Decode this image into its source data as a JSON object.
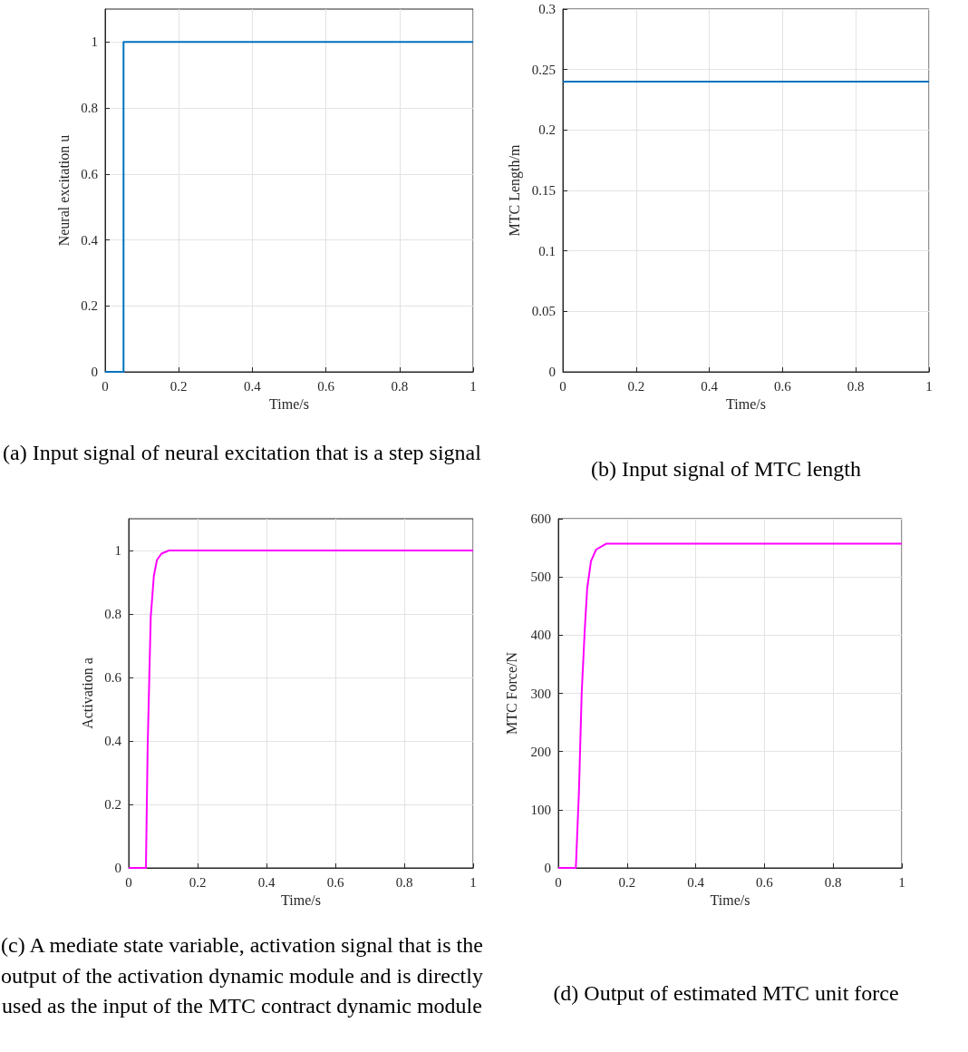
{
  "chart_data": [
    {
      "type": "step",
      "title": "(a) Input signal of neural excitation that is a step signal",
      "xlabel": "Time/s",
      "ylabel": "Neural excitation u",
      "x": [
        0,
        0.05,
        1
      ],
      "series": [
        {
          "color": "#0072bd",
          "values": [
            0,
            1,
            1
          ]
        }
      ],
      "xlim": [
        0,
        1
      ],
      "ylim": [
        0,
        1.1
      ],
      "xticks": [
        0,
        0.2,
        0.4,
        0.6,
        0.8,
        1
      ],
      "yticks": [
        0,
        0.2,
        0.4,
        0.6,
        0.8,
        1
      ],
      "grid": true
    },
    {
      "type": "line",
      "title": "(b) Input signal of MTC length",
      "xlabel": "Time/s",
      "ylabel": "MTC Length/m",
      "x": [
        0,
        1
      ],
      "series": [
        {
          "color": "#0072bd",
          "values": [
            0.24,
            0.24
          ]
        }
      ],
      "xlim": [
        0,
        1
      ],
      "ylim": [
        0,
        0.3
      ],
      "xticks": [
        0,
        0.2,
        0.4,
        0.6,
        0.8,
        1
      ],
      "yticks": [
        0,
        0.05,
        0.1,
        0.15,
        0.2,
        0.25,
        0.3
      ],
      "grid": true
    },
    {
      "type": "line",
      "title": "(c) A mediate state variable, activation signal that is the output of the activation dynamic module and is directly used as the input of the MTC contract dynamic module",
      "xlabel": "Time/s",
      "ylabel": "Activation a",
      "x": [
        0,
        0.05,
        0.055,
        0.06,
        0.064,
        0.073,
        0.082,
        0.095,
        0.117,
        0.2,
        1
      ],
      "series": [
        {
          "color": "#ff00ff",
          "values": [
            0,
            0,
            0.38,
            0.61,
            0.79,
            0.92,
            0.97,
            0.99,
            1,
            1,
            1
          ]
        }
      ],
      "xlim": [
        0,
        1
      ],
      "ylim": [
        0,
        1.1
      ],
      "xticks": [
        0,
        0.2,
        0.4,
        0.6,
        0.8,
        1
      ],
      "yticks": [
        0,
        0.2,
        0.4,
        0.6,
        0.8,
        1
      ],
      "grid": true
    },
    {
      "type": "line",
      "title": "(d) Output of estimated MTC unit force",
      "xlabel": "Time/s",
      "ylabel": "MTC Force/N",
      "x": [
        0,
        0.051,
        0.06,
        0.068,
        0.077,
        0.084,
        0.095,
        0.11,
        0.139,
        0.2,
        1
      ],
      "series": [
        {
          "color": "#ff00ff",
          "values": [
            0,
            0,
            130,
            300,
            410,
            480,
            527,
            547,
            557,
            557,
            557
          ]
        }
      ],
      "xlim": [
        0,
        1
      ],
      "ylim": [
        0,
        600
      ],
      "xticks": [
        0,
        0.2,
        0.4,
        0.6,
        0.8,
        1
      ],
      "yticks": [
        0,
        100,
        200,
        300,
        400,
        500,
        600
      ],
      "grid": true
    }
  ]
}
